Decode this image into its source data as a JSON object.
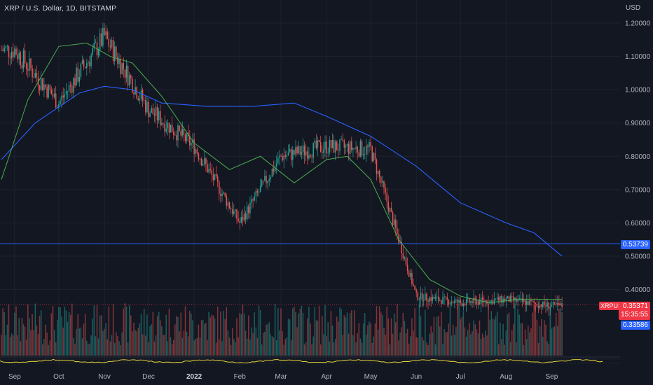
{
  "header": {
    "title": "XRP / U.S. Dollar, 1D, BITSTAMP",
    "currency": "USD"
  },
  "price_axis": [
    "1.20000",
    "1.10000",
    "1.00000",
    "0.90000",
    "0.80000",
    "0.70000",
    "0.60000",
    "0.50000",
    "0.40000"
  ],
  "time_axis": [
    "Sep",
    "Oct",
    "Nov",
    "Dec",
    "2022",
    "Feb",
    "Mar",
    "Apr",
    "May",
    "Jun",
    "Jul",
    "Aug",
    "Sep"
  ],
  "labels": {
    "hline_price": "0.53739",
    "symbol": "XRPUSD",
    "current_price": "0.35371",
    "countdown": "15:35:55",
    "ma_price": "0.33586"
  },
  "colors": {
    "background": "#131722",
    "up": "#26a69a",
    "down": "#ef5350",
    "ma_slow": "#2962ff",
    "ma_fast": "#4caf50",
    "hline": "#2962ff",
    "oscillator": "#ffeb3b"
  },
  "chart_data": {
    "type": "candlestick",
    "x_start": "2021-08-23",
    "y_range": [
      0.335,
      1.25
    ],
    "y_scale": "linear",
    "horizontal_line": 0.53739,
    "monthly_closes": {
      "dates": [
        "2021-09-01",
        "2021-10-01",
        "2021-11-01",
        "2021-12-01",
        "2022-01-01",
        "2022-02-01",
        "2022-03-01",
        "2022-04-01",
        "2022-05-01",
        "2022-06-01",
        "2022-07-01",
        "2022-08-01",
        "2022-09-01"
      ],
      "values": [
        1.12,
        0.96,
        1.16,
        0.94,
        0.83,
        0.6,
        0.8,
        0.83,
        0.82,
        0.38,
        0.36,
        0.37,
        0.35
      ]
    },
    "series": [
      {
        "name": "MA slow",
        "x": [
          "2021-08-23",
          "2021-09-15",
          "2021-10-15",
          "2021-11-01",
          "2021-11-20",
          "2021-12-10",
          "2022-01-10",
          "2022-02-10",
          "2022-03-10",
          "2022-04-01",
          "2022-05-01",
          "2022-06-01",
          "2022-07-01",
          "2022-08-01",
          "2022-08-20",
          "2022-09-08"
        ],
        "values": [
          0.79,
          0.9,
          0.99,
          1.01,
          1.0,
          0.96,
          0.95,
          0.95,
          0.96,
          0.92,
          0.86,
          0.77,
          0.66,
          0.6,
          0.57,
          0.5
        ]
      },
      {
        "name": "MA fast",
        "x": [
          "2021-08-23",
          "2021-09-10",
          "2021-10-01",
          "2021-10-20",
          "2021-11-05",
          "2021-11-20",
          "2021-12-10",
          "2022-01-01",
          "2022-01-25",
          "2022-02-15",
          "2022-03-10",
          "2022-04-01",
          "2022-04-15",
          "2022-05-01",
          "2022-05-20",
          "2022-06-10",
          "2022-07-01",
          "2022-07-20",
          "2022-08-10",
          "2022-09-08"
        ],
        "values": [
          0.73,
          0.97,
          1.13,
          1.14,
          1.1,
          1.08,
          0.98,
          0.84,
          0.76,
          0.8,
          0.72,
          0.79,
          0.8,
          0.73,
          0.55,
          0.43,
          0.38,
          0.36,
          0.37,
          0.37
        ]
      }
    ],
    "volume": "present",
    "oscillator": "present"
  }
}
